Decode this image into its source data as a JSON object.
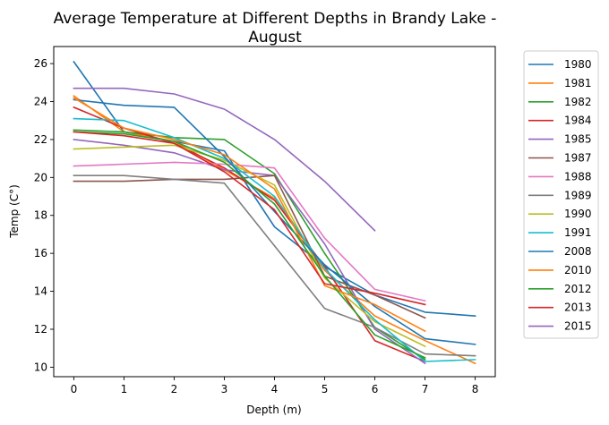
{
  "chart_data": {
    "type": "line",
    "title_lines": [
      "Average Temperature at Different Depths in Brandy Lake -",
      "August"
    ],
    "xlabel": "Depth (m)",
    "ylabel": "Temp (C°)",
    "xlim": [
      -0.4,
      8.4
    ],
    "ylim": [
      9.5,
      26.9
    ],
    "xticks": [
      0,
      1,
      2,
      3,
      4,
      5,
      6,
      7,
      8
    ],
    "yticks": [
      10,
      12,
      14,
      16,
      18,
      20,
      22,
      24,
      26
    ],
    "grid": false,
    "legend_position": "outside-right",
    "series": [
      {
        "name": "1980",
        "color": "#1f77b4",
        "x": [
          0,
          1,
          2,
          3,
          4,
          5,
          6,
          7,
          8
        ],
        "y": [
          26.1,
          22.4,
          21.9,
          21.4,
          17.4,
          15.3,
          13.8,
          12.9,
          12.7
        ]
      },
      {
        "name": "1981",
        "color": "#ff7f0e",
        "x": [
          0,
          1,
          2,
          3,
          4,
          5,
          6,
          7,
          8
        ],
        "y": [
          24.3,
          22.4,
          21.9,
          20.4,
          18.9,
          15.1,
          12.7,
          11.4,
          10.2
        ]
      },
      {
        "name": "1982",
        "color": "#2ca02c",
        "x": [
          0,
          1,
          2,
          3,
          4,
          5,
          6,
          7
        ],
        "y": [
          22.5,
          22.4,
          22.1,
          22.0,
          20.2,
          16.0,
          12.1,
          10.4
        ]
      },
      {
        "name": "1984",
        "color": "#d62728",
        "x": [
          0,
          1,
          2,
          3,
          4,
          5,
          6,
          7
        ],
        "y": [
          23.7,
          22.6,
          21.8,
          20.5,
          18.8,
          15.3,
          11.4,
          10.3
        ]
      },
      {
        "name": "1985",
        "color": "#9467bd",
        "x": [
          0,
          1,
          2,
          3,
          4,
          5,
          6,
          7
        ],
        "y": [
          22.0,
          21.7,
          21.3,
          20.4,
          20.1,
          16.5,
          12.0,
          10.2
        ]
      },
      {
        "name": "1987",
        "color": "#8c564b",
        "x": [
          0,
          1,
          2,
          3,
          4,
          5,
          6,
          7
        ],
        "y": [
          19.8,
          19.8,
          19.9,
          19.9,
          20.1,
          14.8,
          13.8,
          12.6
        ]
      },
      {
        "name": "1988",
        "color": "#e377c2",
        "x": [
          0,
          1,
          2,
          3,
          4,
          5,
          6,
          7
        ],
        "y": [
          20.6,
          20.7,
          20.8,
          20.7,
          20.5,
          16.8,
          14.1,
          13.5
        ]
      },
      {
        "name": "1989",
        "color": "#7f7f7f",
        "x": [
          0,
          1,
          2,
          3,
          4,
          5,
          6,
          7,
          8
        ],
        "y": [
          20.1,
          20.1,
          19.9,
          19.7,
          16.4,
          13.1,
          12.1,
          10.7,
          10.6
        ]
      },
      {
        "name": "1990",
        "color": "#bcbd22",
        "x": [
          0,
          1,
          2,
          3,
          4,
          5,
          6,
          7
        ],
        "y": [
          21.5,
          21.6,
          21.7,
          20.9,
          19.6,
          14.7,
          12.4,
          11.1
        ]
      },
      {
        "name": "1991",
        "color": "#17becf",
        "x": [
          0,
          1,
          2,
          3,
          4,
          5,
          6,
          7,
          8
        ],
        "y": [
          23.1,
          23.0,
          22.1,
          21.0,
          19.0,
          15.2,
          12.5,
          10.3,
          10.4
        ]
      },
      {
        "name": "2008",
        "color": "#1f77b4",
        "x": [
          0,
          1,
          2,
          3,
          4,
          5,
          6,
          7,
          8
        ],
        "y": [
          24.1,
          23.8,
          23.7,
          21.1,
          18.2,
          15.4,
          13.2,
          11.5,
          11.2
        ]
      },
      {
        "name": "2010",
        "color": "#ff7f0e",
        "x": [
          0,
          1,
          2,
          3,
          4,
          5,
          6,
          7
        ],
        "y": [
          24.2,
          22.6,
          22.0,
          21.2,
          19.4,
          14.3,
          13.3,
          11.9
        ]
      },
      {
        "name": "2012",
        "color": "#2ca02c",
        "x": [
          0,
          1,
          2,
          3,
          4,
          5,
          6,
          7
        ],
        "y": [
          22.4,
          22.3,
          21.9,
          20.8,
          18.6,
          14.8,
          11.7,
          10.5
        ]
      },
      {
        "name": "2013",
        "color": "#d62728",
        "x": [
          0,
          1,
          2,
          3,
          4,
          5,
          6,
          7
        ],
        "y": [
          22.4,
          22.2,
          21.8,
          20.3,
          18.3,
          14.4,
          13.9,
          13.3
        ]
      },
      {
        "name": "2015",
        "color": "#9467bd",
        "x": [
          0,
          1,
          2,
          3,
          4,
          5,
          6
        ],
        "y": [
          24.7,
          24.7,
          24.4,
          23.6,
          22.0,
          19.8,
          17.2
        ]
      }
    ]
  }
}
